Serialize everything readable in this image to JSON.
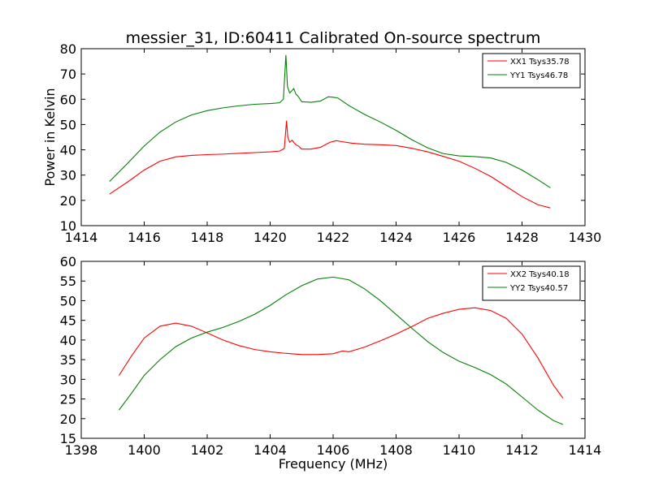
{
  "figure": {
    "title": "messier_31, ID:60411 Calibrated On-source spectrum"
  },
  "chart_data": [
    {
      "type": "line",
      "title": "messier_31, ID:60411 Calibrated On-source spectrum",
      "xlabel": "",
      "ylabel": "Power in Kelvin",
      "xlim": [
        1414,
        1430
      ],
      "ylim": [
        10,
        80
      ],
      "xticks": [
        1414,
        1416,
        1418,
        1420,
        1422,
        1424,
        1426,
        1428,
        1430
      ],
      "yticks": [
        10,
        20,
        30,
        40,
        50,
        60,
        70,
        80
      ],
      "legend_position": "top-right",
      "grid": false,
      "series": [
        {
          "name": "XX1 Tsys35.78",
          "color": "#ff0000",
          "x": [
            1414.9,
            1415.5,
            1416.0,
            1416.5,
            1417.0,
            1417.5,
            1418.0,
            1418.5,
            1419.0,
            1419.5,
            1420.0,
            1420.3,
            1420.45,
            1420.52,
            1420.56,
            1420.62,
            1420.7,
            1420.76,
            1420.82,
            1420.9,
            1421.0,
            1421.3,
            1421.6,
            1421.9,
            1422.0,
            1422.1,
            1422.3,
            1422.6,
            1423.0,
            1423.5,
            1424.0,
            1424.5,
            1425.0,
            1425.5,
            1426.0,
            1426.5,
            1427.0,
            1427.5,
            1428.0,
            1428.5,
            1428.9
          ],
          "values": [
            22.5,
            27.5,
            32.0,
            35.5,
            37.2,
            37.8,
            38.1,
            38.3,
            38.6,
            38.9,
            39.2,
            39.5,
            40.5,
            51.5,
            45.0,
            43.0,
            43.8,
            42.8,
            42.0,
            41.5,
            40.3,
            40.3,
            41.0,
            43.0,
            43.3,
            43.6,
            43.2,
            42.6,
            42.2,
            42.0,
            41.7,
            40.6,
            39.2,
            37.4,
            35.5,
            32.7,
            29.5,
            25.5,
            21.5,
            18.3,
            17.0
          ]
        },
        {
          "name": "YY1 Tsys46.78",
          "color": "#008000",
          "x": [
            1414.9,
            1415.5,
            1416.0,
            1416.5,
            1417.0,
            1417.5,
            1418.0,
            1418.5,
            1419.0,
            1419.5,
            1420.0,
            1420.3,
            1420.42,
            1420.5,
            1420.55,
            1420.62,
            1420.7,
            1420.75,
            1420.82,
            1420.9,
            1421.0,
            1421.3,
            1421.6,
            1421.85,
            1422.0,
            1422.15,
            1422.5,
            1423.0,
            1423.5,
            1424.0,
            1424.5,
            1425.0,
            1425.5,
            1426.0,
            1426.5,
            1427.0,
            1427.5,
            1428.0,
            1428.5,
            1428.9
          ],
          "values": [
            27.5,
            35.0,
            41.5,
            47.0,
            51.0,
            53.8,
            55.5,
            56.6,
            57.4,
            58.0,
            58.3,
            58.6,
            60.0,
            77.5,
            65.0,
            62.5,
            63.5,
            64.2,
            62.0,
            61.0,
            59.0,
            58.8,
            59.3,
            61.0,
            60.8,
            60.5,
            57.5,
            54.0,
            51.0,
            47.7,
            44.0,
            40.8,
            38.5,
            37.6,
            37.3,
            36.8,
            35.0,
            32.0,
            28.2,
            25.0
          ]
        }
      ]
    },
    {
      "type": "line",
      "title": "",
      "xlabel": "Frequency (MHz)",
      "ylabel": "",
      "xlim": [
        1398,
        1414
      ],
      "ylim": [
        15,
        60
      ],
      "xticks": [
        1398,
        1400,
        1402,
        1404,
        1406,
        1408,
        1410,
        1412,
        1414
      ],
      "yticks": [
        15,
        20,
        25,
        30,
        35,
        40,
        45,
        50,
        55,
        60
      ],
      "legend_position": "top-right",
      "grid": false,
      "series": [
        {
          "name": "XX2 Tsys40.18",
          "color": "#ff0000",
          "x": [
            1399.2,
            1399.6,
            1400.0,
            1400.5,
            1401.0,
            1401.5,
            1402.0,
            1402.5,
            1403.0,
            1403.5,
            1404.0,
            1404.5,
            1405.0,
            1405.5,
            1406.0,
            1406.3,
            1406.5,
            1407.0,
            1407.5,
            1408.0,
            1408.5,
            1409.0,
            1409.5,
            1410.0,
            1410.5,
            1411.0,
            1411.5,
            1412.0,
            1412.5,
            1413.0,
            1413.3
          ],
          "values": [
            31.0,
            36.0,
            40.5,
            43.5,
            44.3,
            43.5,
            41.8,
            40.0,
            38.6,
            37.6,
            37.0,
            36.6,
            36.3,
            36.3,
            36.5,
            37.2,
            37.0,
            38.2,
            39.8,
            41.5,
            43.4,
            45.5,
            46.8,
            47.8,
            48.2,
            47.5,
            45.5,
            41.5,
            35.5,
            28.5,
            25.2
          ]
        },
        {
          "name": "YY2 Tsys40.57",
          "color": "#008000",
          "x": [
            1399.2,
            1399.6,
            1400.0,
            1400.5,
            1401.0,
            1401.5,
            1402.0,
            1402.5,
            1403.0,
            1403.5,
            1404.0,
            1404.5,
            1405.0,
            1405.5,
            1406.0,
            1406.5,
            1407.0,
            1407.5,
            1408.0,
            1408.5,
            1409.0,
            1409.5,
            1410.0,
            1410.5,
            1411.0,
            1411.5,
            1412.0,
            1412.5,
            1413.0,
            1413.3
          ],
          "values": [
            22.2,
            26.5,
            31.0,
            35.0,
            38.3,
            40.5,
            42.0,
            43.2,
            44.7,
            46.5,
            48.8,
            51.5,
            53.8,
            55.5,
            56.0,
            55.3,
            53.0,
            50.0,
            46.5,
            43.0,
            39.6,
            36.8,
            34.6,
            33.0,
            31.2,
            28.8,
            25.5,
            22.2,
            19.5,
            18.5
          ]
        }
      ]
    }
  ]
}
